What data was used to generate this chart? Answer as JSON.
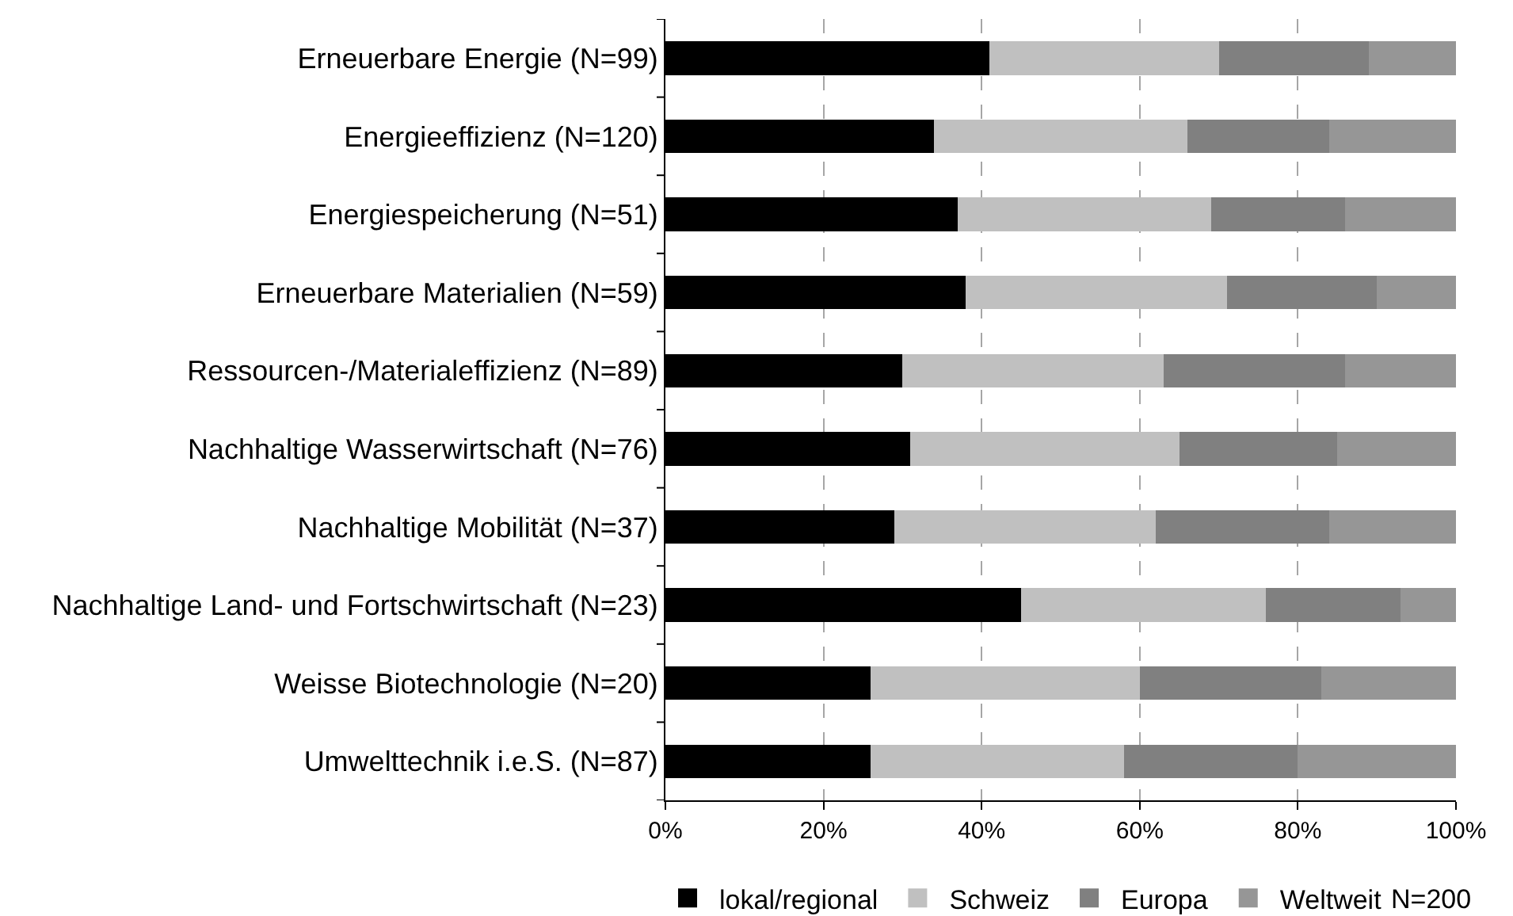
{
  "chart_data": {
    "type": "bar",
    "orientation": "horizontal",
    "stacked": true,
    "categories": [
      "Erneuerbare Energie (N=99)",
      "Energieeffizienz (N=120)",
      "Energiespeicherung (N=51)",
      "Erneuerbare Materialien (N=59)",
      "Ressourcen-/Materialeffizienz (N=89)",
      "Nachhaltige Wasserwirtschaft (N=76)",
      "Nachhaltige Mobilität (N=37)",
      "Nachhaltige Land- und Fortschwirtschaft (N=23)",
      "Weisse Biotechnologie (N=20)",
      "Umwelttechnik i.e.S. (N=87)"
    ],
    "series": [
      {
        "name": "lokal/regional",
        "color": "#000000",
        "values": [
          41,
          34,
          37,
          38,
          30,
          31,
          29,
          45,
          26,
          26
        ]
      },
      {
        "name": "Schweiz",
        "color": "#c0c0c0",
        "values": [
          29,
          32,
          32,
          33,
          33,
          34,
          33,
          31,
          34,
          32
        ]
      },
      {
        "name": "Europa",
        "color": "#808080",
        "values": [
          19,
          18,
          17,
          19,
          23,
          20,
          22,
          17,
          23,
          22
        ]
      },
      {
        "name": "Weltweit",
        "color": "#969696",
        "values": [
          11,
          16,
          14,
          10,
          14,
          15,
          16,
          7,
          17,
          20
        ]
      }
    ],
    "xlim": [
      0,
      100
    ],
    "xticks": [
      {
        "value": 0,
        "label": "0%"
      },
      {
        "value": 20,
        "label": "20%"
      },
      {
        "value": 40,
        "label": "40%"
      },
      {
        "value": 60,
        "label": "60%"
      },
      {
        "value": 80,
        "label": "80%"
      },
      {
        "value": 100,
        "label": "100%"
      }
    ],
    "grid": "x",
    "legend": "bottom",
    "annotations": [
      "N=200"
    ]
  }
}
